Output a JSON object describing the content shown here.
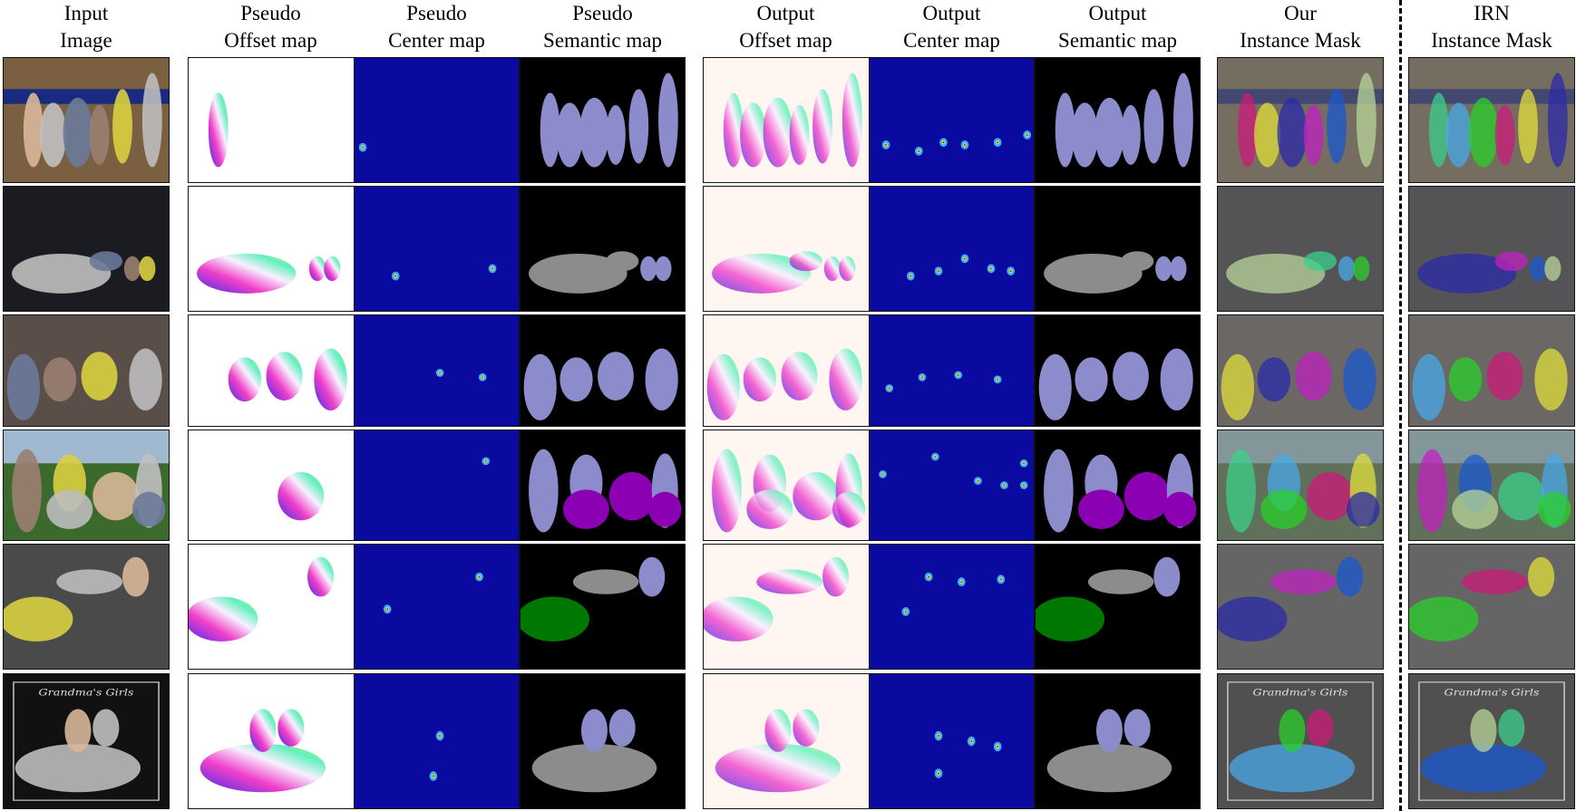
{
  "columns": [
    {
      "line1": "Input",
      "line2": "Image"
    },
    {
      "line1": "Pseudo",
      "line2": "Offset map"
    },
    {
      "line1": "Pseudo",
      "line2": "Center map"
    },
    {
      "line1": "Pseudo",
      "line2": "Semantic map"
    },
    {
      "line1": "Output",
      "line2": "Offset map"
    },
    {
      "line1": "Output",
      "line2": "Center map"
    },
    {
      "line1": "Output",
      "line2": "Semantic map"
    },
    {
      "line1": "Our",
      "line2": "Instance Mask"
    },
    {
      "line1": "IRN",
      "line2": "Instance Mask"
    }
  ],
  "photo_caption": "Grandma's Girls",
  "colors": {
    "center_bg": "#0a0aa0",
    "semantic_bg": "#000000",
    "person": "#8c8ccc",
    "horse": "#8c00b4",
    "car": "#8c8c8c",
    "bicycle": "#007800"
  }
}
